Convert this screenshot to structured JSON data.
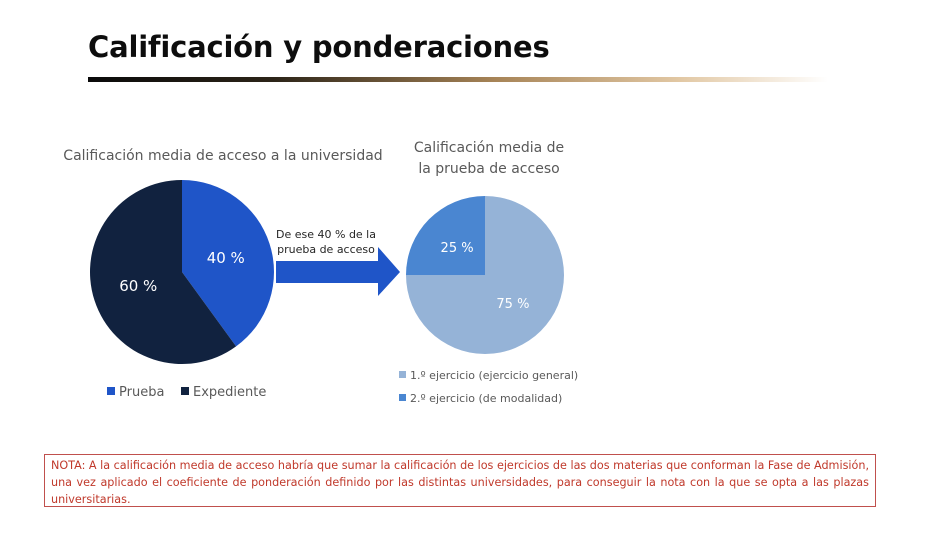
{
  "page": {
    "title": "Calificación y ponderaciones",
    "arrow_label_line1": "De ese 40 % de la",
    "arrow_label_line2": "prueba de acceso",
    "note": "NOTA: A la calificación media de acceso habría que sumar la calificación de los ejercicios de las dos materias que conforman la Fase de Admisión, una vez aplicado el coeficiente de ponderación definido por las distintas universidades, para conseguir la nota con la que se opta a las plazas universitarias."
  },
  "chart_data": [
    {
      "type": "pie",
      "title": "Calificación media de acceso a la universidad",
      "legend_position": "bottom",
      "slices": [
        {
          "name": "Prueba",
          "value": 40,
          "label": "40 %",
          "color": "#1f55c8"
        },
        {
          "name": "Expediente",
          "value": 60,
          "label": "60 %",
          "color": "#11223f"
        }
      ]
    },
    {
      "type": "pie",
      "title_lines": [
        "Calificación media de",
        "la prueba de acceso"
      ],
      "legend_position": "bottom",
      "slices": [
        {
          "name": "1.º ejercicio (ejercicio general)",
          "value": 75,
          "label": "75 %",
          "color": "#95b3d7"
        },
        {
          "name": "2.º ejercicio (de modalidad)",
          "value": 25,
          "label": "25 %",
          "color": "#4a86d1"
        }
      ]
    }
  ],
  "colors": {
    "arrow": "#1f55c8",
    "note_border": "#c0504d",
    "note_text": "#c0392b",
    "chart_text": "#595959"
  }
}
